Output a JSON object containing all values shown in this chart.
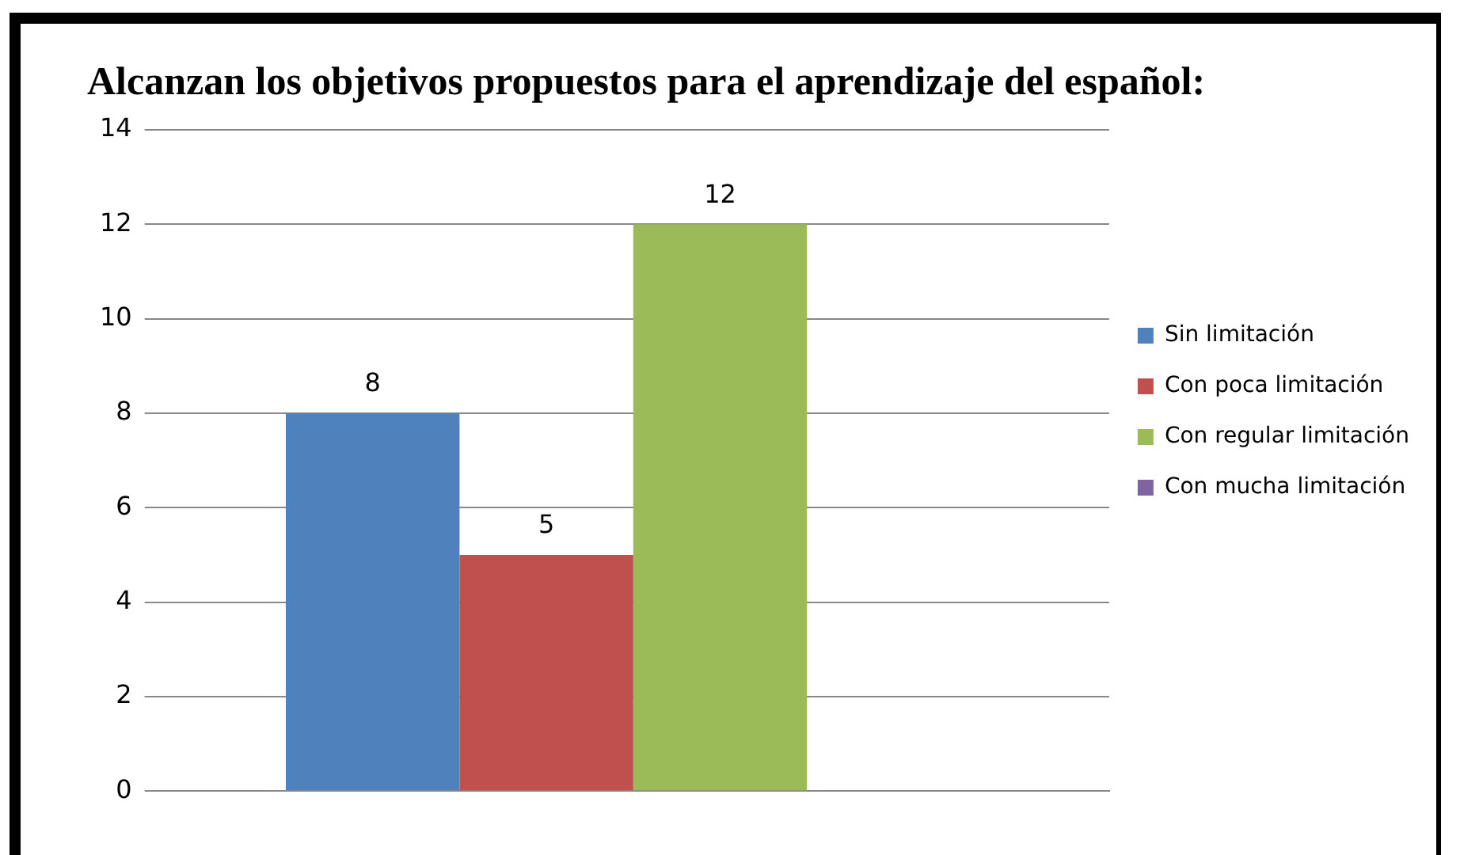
{
  "chart_data": {
    "type": "bar",
    "title": "Alcanzan los objetivos propuestos para el aprendizaje del español:",
    "categories": [
      null
    ],
    "series": [
      {
        "name": "Sin limitación",
        "color": "#4f81bd",
        "values": [
          8
        ]
      },
      {
        "name": "Con poca limitación",
        "color": "#c0504d",
        "values": [
          5
        ]
      },
      {
        "name": "Con regular limitación",
        "color": "#9bbb59",
        "values": [
          12
        ]
      },
      {
        "name": "Con mucha limitación",
        "color": "#8064a2",
        "values": [
          null
        ]
      }
    ],
    "ylim": [
      0,
      14
    ],
    "yticks": [
      0,
      2,
      4,
      6,
      8,
      10,
      12,
      14
    ],
    "grid": "y",
    "legend": "right",
    "data_labels": true
  }
}
